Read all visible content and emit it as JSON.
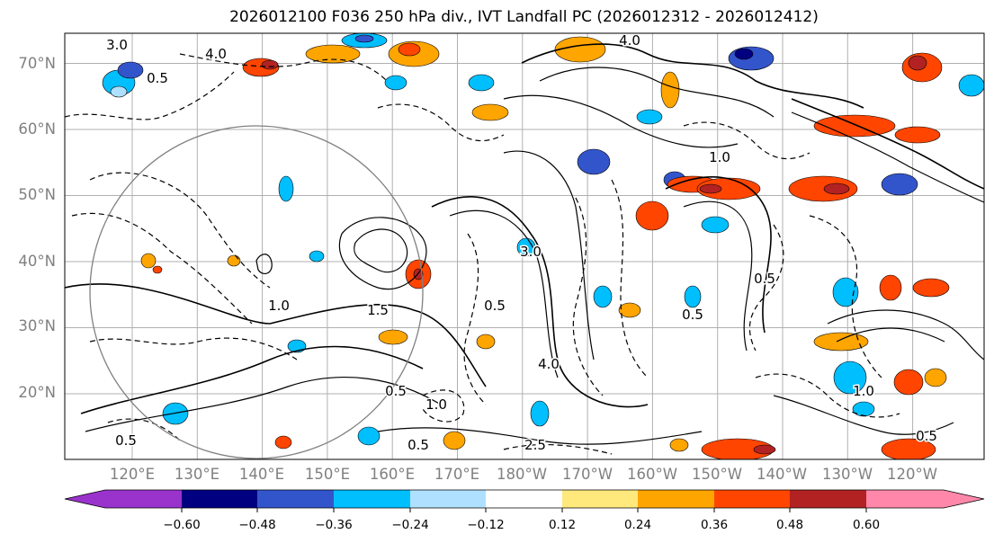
{
  "title": "2026012100 F036 250 hPa div., IVT Landfall PC (2026012312 - 2026012412)",
  "map": {
    "lat_labels": [
      "70°N",
      "60°N",
      "50°N",
      "40°N",
      "30°N",
      "20°N"
    ],
    "lon_labels": [
      "120°E",
      "130°E",
      "140°E",
      "150°E",
      "160°E",
      "170°E",
      "180°W",
      "170°W",
      "160°W",
      "150°W",
      "140°W",
      "130°W",
      "120°W"
    ],
    "contour_labels": [
      "3.0",
      "4.0",
      "0.5",
      "1.0",
      "1.5",
      "4.0",
      "0.5",
      "1.0",
      "0.5",
      "3.0",
      "0.5",
      "4.0",
      "0.5",
      "1.0",
      "0.5",
      "1.0",
      "0.5",
      "2.5",
      "0.5"
    ]
  },
  "colorbar": {
    "colors": [
      "#9933cc",
      "#000080",
      "#3355cc",
      "#00bfff",
      "#b0e0ff",
      "#ffffff",
      "#ffe87c",
      "#ffa500",
      "#ff4500",
      "#b22222",
      "#ff88aa"
    ],
    "tick_labels": [
      "−0.60",
      "−0.48",
      "−0.36",
      "−0.24",
      "−0.12",
      "0.12",
      "0.24",
      "0.36",
      "0.48",
      "0.60"
    ]
  }
}
